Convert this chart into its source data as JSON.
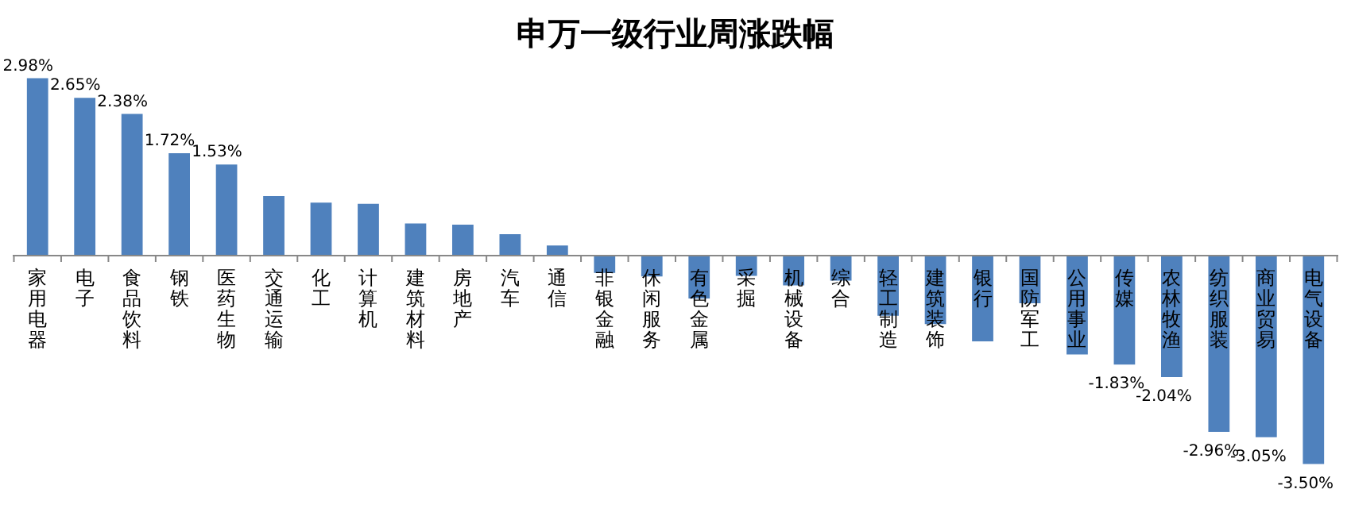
{
  "chart_data": {
    "type": "bar",
    "title": "申万一级行业周涨跌幅",
    "categories": [
      "家用电器",
      "电子",
      "食品饮料",
      "钢铁",
      "医药生物",
      "交通运输",
      "化工",
      "计算机",
      "建筑材料",
      "房地产",
      "汽车",
      "通信",
      "非银金融",
      "休闲服务",
      "有色金属",
      "采掘",
      "机械设备",
      "综合",
      "轻工制造",
      "建筑装饰",
      "银行",
      "国防军工",
      "公用事业",
      "传媒",
      "农林牧渔",
      "纺织服装",
      "商业贸易",
      "电气设备"
    ],
    "values": [
      2.98,
      2.65,
      2.38,
      1.72,
      1.53,
      1.0,
      0.89,
      0.87,
      0.54,
      0.52,
      0.36,
      0.17,
      -0.29,
      -0.35,
      -0.72,
      -0.34,
      -0.5,
      -0.42,
      -1.01,
      -1.15,
      -1.44,
      -0.8,
      -1.66,
      -1.83,
      -2.04,
      -2.96,
      -3.05,
      -3.5
    ],
    "value_labels": [
      "2.98%",
      "2.65%",
      "2.38%",
      "1.72%",
      "1.53%",
      null,
      null,
      null,
      null,
      null,
      null,
      null,
      null,
      null,
      null,
      null,
      null,
      null,
      null,
      null,
      null,
      null,
      null,
      "-1.83%",
      "-2.04%",
      "-2.96%",
      "-3.05%",
      "-3.50%"
    ],
    "color": "#4f81bd"
  }
}
